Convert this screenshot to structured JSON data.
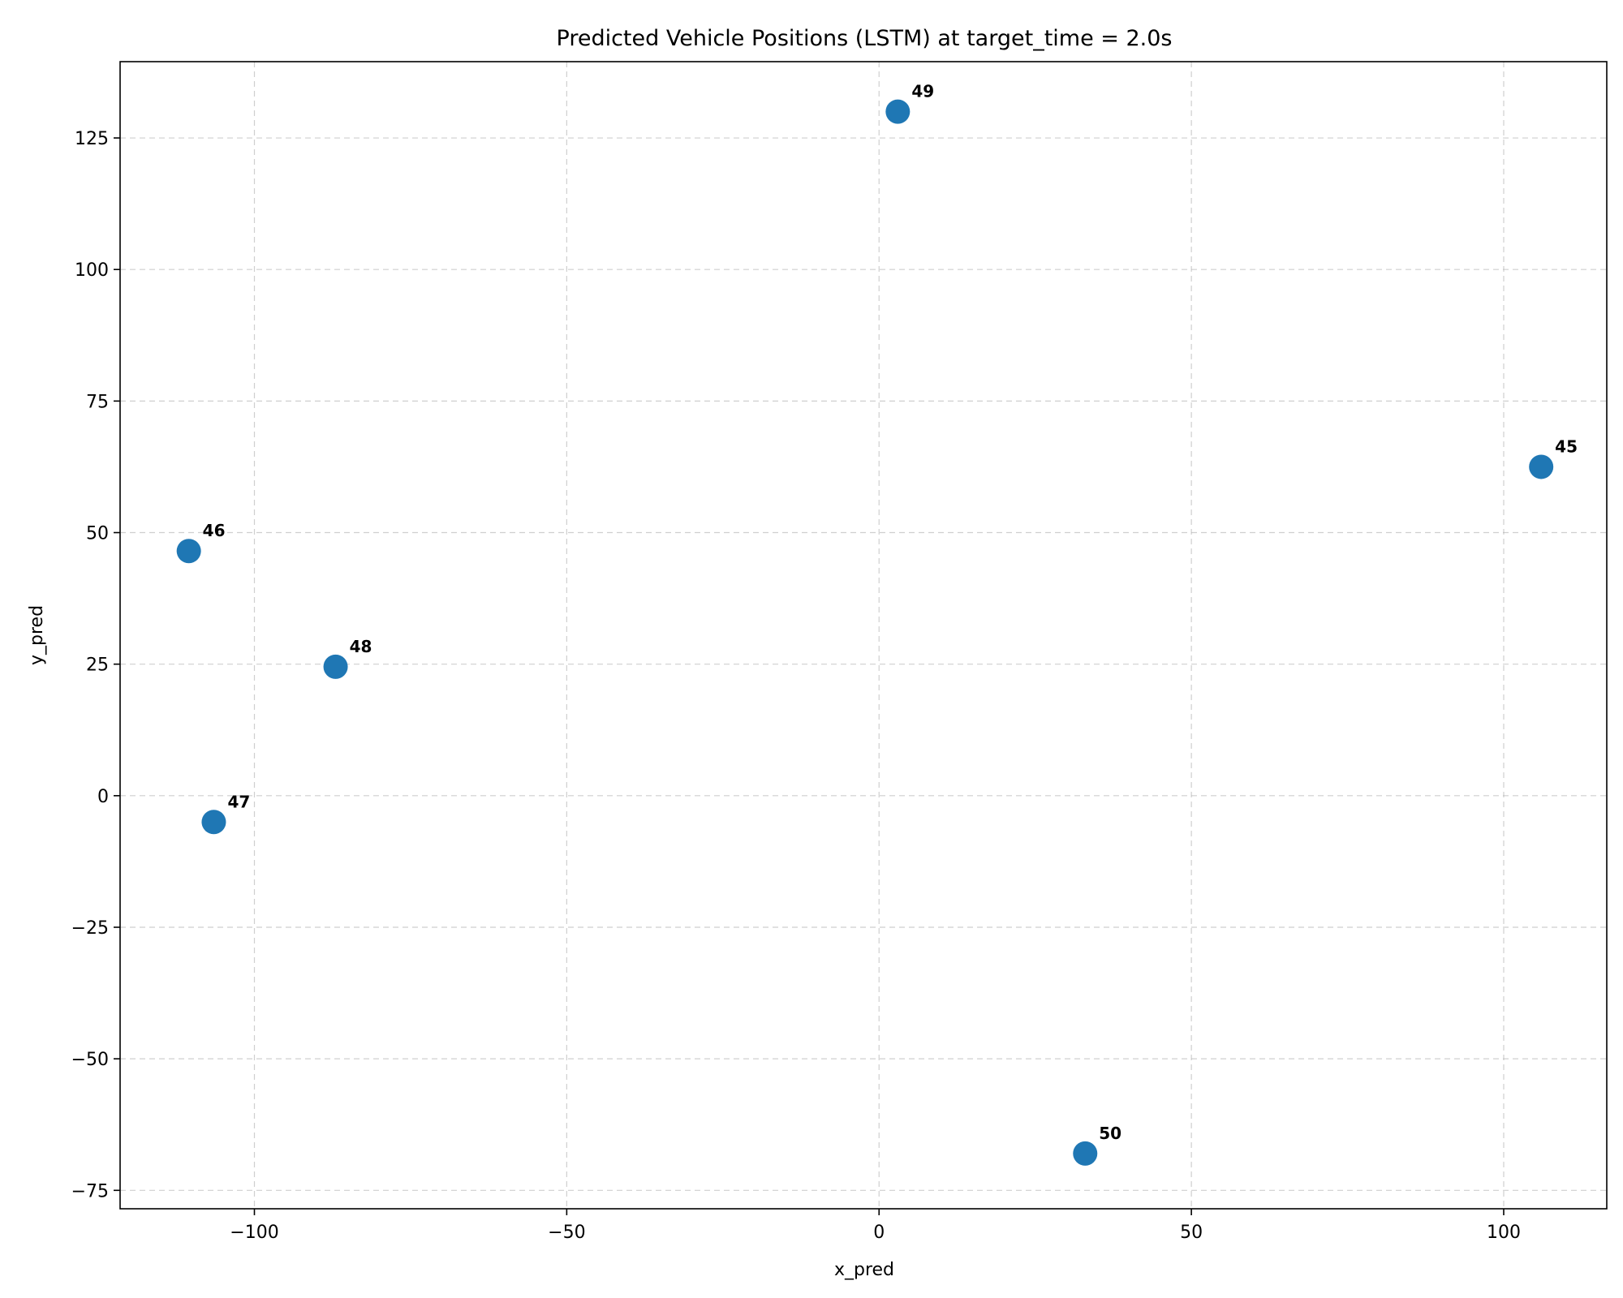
{
  "chart_data": {
    "type": "scatter",
    "title": "Predicted Vehicle Positions (LSTM) at target_time = 2.0s",
    "xlabel": "x_pred",
    "ylabel": "y_pred",
    "xlim": [
      -121.5,
      116.5
    ],
    "ylim": [
      -78.5,
      139.5
    ],
    "xticks": [
      -100,
      -50,
      0,
      50,
      100
    ],
    "yticks": [
      -75,
      -50,
      -25,
      0,
      25,
      50,
      75,
      100,
      125
    ],
    "xtick_labels": [
      "−100",
      "−50",
      "0",
      "50",
      "100"
    ],
    "ytick_labels": [
      "−75",
      "−50",
      "−25",
      "0",
      "25",
      "50",
      "75",
      "100",
      "125"
    ],
    "grid": true,
    "marker_color": "#1f77b4",
    "points": [
      {
        "label": "45",
        "x": 106.0,
        "y": 62.5
      },
      {
        "label": "46",
        "x": -110.5,
        "y": 46.5
      },
      {
        "label": "47",
        "x": -106.5,
        "y": -5.0
      },
      {
        "label": "48",
        "x": -87.0,
        "y": 24.5
      },
      {
        "label": "49",
        "x": 3.0,
        "y": 130.0
      },
      {
        "label": "50",
        "x": 33.0,
        "y": -68.0
      }
    ]
  }
}
